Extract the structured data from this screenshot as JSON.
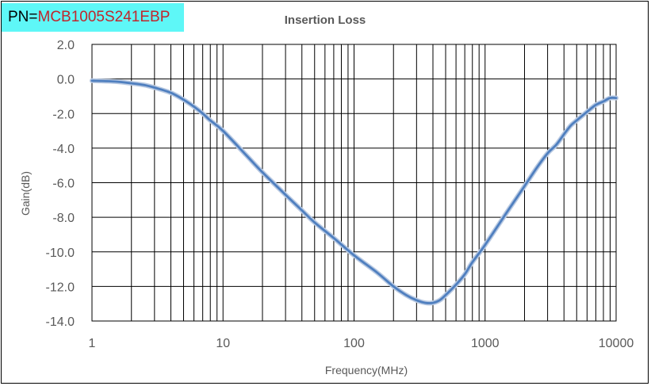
{
  "part_number": {
    "prefix": "PN=",
    "value": "MCB1005S241EBP",
    "background_color": "#5ef7f7",
    "value_color": "#c0262c"
  },
  "chart_data": {
    "type": "line",
    "title": "Insertion Loss",
    "xlabel": "Frequency(MHz)",
    "ylabel": "Gain(dB)",
    "x_scale": "log",
    "xlim": [
      1,
      10000
    ],
    "ylim": [
      -14,
      2
    ],
    "x_ticks": [
      "1",
      "10",
      "100",
      "1000",
      "10000"
    ],
    "y_ticks": [
      "2.0",
      "0.0",
      "-2.0",
      "-4.0",
      "-6.0",
      "-8.0",
      "-10.0",
      "-12.0",
      "-14.0"
    ],
    "grid": true,
    "line_color": "#4f7fbf",
    "series": [
      {
        "x": [
          1,
          1.5,
          2,
          2.5,
          3,
          4,
          5,
          6,
          7,
          8,
          10,
          15,
          20,
          30,
          40,
          50,
          70,
          100,
          150,
          200,
          250,
          300,
          350,
          400,
          450,
          500,
          600,
          700,
          800,
          1000,
          1500,
          2000,
          2500,
          3000,
          3500,
          4000,
          4500,
          5000,
          6000,
          7000,
          8000,
          9000,
          10000
        ],
        "y": [
          -0.1,
          -0.15,
          -0.25,
          -0.35,
          -0.5,
          -0.8,
          -1.2,
          -1.6,
          -2.0,
          -2.4,
          -3.0,
          -4.4,
          -5.4,
          -6.7,
          -7.6,
          -8.3,
          -9.2,
          -10.2,
          -11.2,
          -12.0,
          -12.5,
          -12.8,
          -12.95,
          -12.95,
          -12.8,
          -12.5,
          -11.9,
          -11.3,
          -10.6,
          -9.6,
          -7.6,
          -6.2,
          -5.1,
          -4.3,
          -3.8,
          -3.2,
          -2.7,
          -2.4,
          -1.9,
          -1.5,
          -1.3,
          -1.1,
          -1.1
        ]
      }
    ]
  }
}
